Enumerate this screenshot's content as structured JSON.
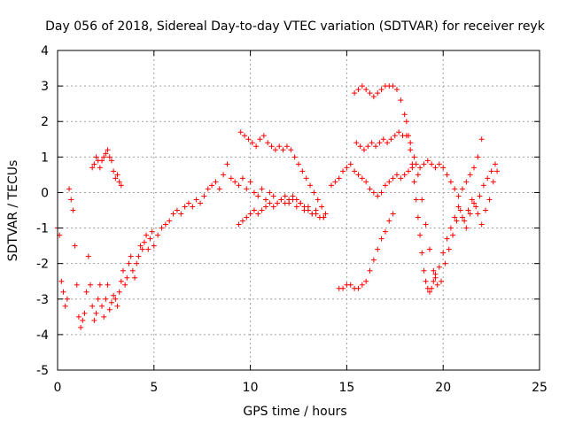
{
  "chart_data": {
    "type": "scatter",
    "title": "Day 056 of 2018, Sidereal Day-to-day VTEC variation (SDTVAR) for receiver reyk",
    "xlabel": "GPS time / hours",
    "ylabel": "SDTVAR / TECUs",
    "xlim": [
      0,
      25
    ],
    "ylim": [
      -5,
      4
    ],
    "xticks": [
      "0",
      "5",
      "10",
      "15",
      "20",
      "25"
    ],
    "yticks": [
      "-5",
      "-4",
      "-3",
      "-2",
      "-1",
      "0",
      "1",
      "2",
      "3",
      "4"
    ],
    "grid": true,
    "legend": "none",
    "marker": "+",
    "color": "#ff0000",
    "series": [
      {
        "x": [
          0.0,
          0.1,
          0.2,
          0.3,
          0.4,
          0.5,
          0.6,
          0.7,
          0.8,
          0.9,
          1.0,
          1.1,
          1.2,
          1.3,
          1.4,
          1.5,
          1.6,
          1.7,
          1.8,
          1.9,
          2.0,
          2.1,
          2.2,
          2.3,
          2.4,
          2.5,
          2.6,
          2.7,
          2.8,
          2.9,
          3.0,
          3.1,
          3.2,
          3.3,
          3.4,
          3.5,
          3.6,
          3.7,
          3.8,
          3.9,
          4.0,
          4.1,
          4.2,
          4.3,
          4.4,
          4.5,
          4.6,
          4.7,
          4.8,
          4.9,
          5.0,
          5.2,
          5.4,
          5.6,
          5.8,
          6.0,
          6.2,
          6.4,
          6.6,
          6.8,
          7.0,
          7.2,
          7.4,
          7.6,
          7.8,
          8.0,
          8.2,
          8.4,
          8.6,
          8.8,
          9.0,
          9.2,
          9.4,
          9.6,
          9.8,
          10.0,
          10.2,
          10.4,
          10.6,
          10.8,
          11.0,
          11.2,
          11.4,
          11.6,
          11.8,
          12.0,
          12.2,
          12.4,
          12.6,
          12.8,
          13.0,
          13.2,
          13.4,
          13.6,
          13.8
        ],
        "y": [
          -1.0,
          -1.2,
          -2.5,
          -2.8,
          -3.2,
          -3.0,
          0.1,
          -0.2,
          -0.5,
          -1.5,
          -2.6,
          -3.5,
          -3.8,
          -3.6,
          -3.4,
          -2.8,
          -1.8,
          -2.6,
          -3.2,
          -3.6,
          -3.4,
          -3.0,
          -2.6,
          -3.2,
          -3.5,
          -3.0,
          -2.6,
          -3.3,
          -3.1,
          -2.9,
          -3.0,
          -3.2,
          -2.8,
          -2.5,
          -2.2,
          -2.6,
          -2.4,
          -2.0,
          -1.8,
          -2.2,
          -2.4,
          -2.0,
          -1.8,
          -1.5,
          -1.6,
          -1.4,
          -1.2,
          -1.6,
          -1.3,
          -1.1,
          -1.5,
          -1.2,
          -1.0,
          -0.9,
          -0.8,
          -0.6,
          -0.5,
          -0.6,
          -0.4,
          -0.3,
          -0.4,
          -0.2,
          -0.3,
          -0.1,
          0.1,
          0.2,
          0.3,
          0.1,
          0.5,
          0.8,
          0.4,
          0.3,
          0.2,
          0.4,
          0.1,
          0.3,
          0.0,
          -0.1,
          0.1,
          -0.2,
          0.0,
          -0.1,
          -0.3,
          -0.2,
          -0.1,
          -0.3,
          -0.2,
          -0.4,
          -0.3,
          -0.5,
          -0.4,
          -0.6,
          -0.5,
          -0.7,
          -0.7
        ]
      },
      {
        "x": [
          1.8,
          1.9,
          2.0,
          2.1,
          2.2,
          2.3,
          2.4,
          2.5,
          2.6,
          2.7,
          2.8,
          2.9,
          3.0,
          3.1,
          3.2,
          3.3
        ],
        "y": [
          0.7,
          0.8,
          1.0,
          0.9,
          0.7,
          0.9,
          1.0,
          1.1,
          1.2,
          1.0,
          0.9,
          0.6,
          0.4,
          0.5,
          0.3,
          0.2
        ]
      },
      {
        "x": [
          9.4,
          9.6,
          9.8,
          10.0,
          10.2,
          10.4,
          10.6,
          10.8,
          11.0,
          11.2,
          11.4,
          11.6,
          11.8,
          12.0,
          12.2,
          12.4,
          12.6,
          12.8,
          13.0,
          13.2,
          13.4,
          13.6,
          13.8
        ],
        "y": [
          -0.9,
          -0.8,
          -0.7,
          -0.6,
          -0.5,
          -0.6,
          -0.5,
          -0.4,
          -0.3,
          -0.4,
          -0.3,
          -0.2,
          -0.3,
          -0.2,
          -0.1,
          -0.2,
          -0.3,
          -0.4,
          -0.5,
          -0.6,
          -0.6,
          -0.7,
          -0.7
        ]
      },
      {
        "x": [
          9.5,
          9.7,
          9.9,
          10.1,
          10.3,
          10.5,
          10.7,
          10.9,
          11.1,
          11.3,
          11.5,
          11.7,
          11.9,
          12.1,
          12.3,
          12.5,
          12.7,
          12.9,
          13.1,
          13.3,
          13.5,
          13.7,
          13.9
        ],
        "y": [
          1.7,
          1.6,
          1.5,
          1.4,
          1.3,
          1.5,
          1.6,
          1.4,
          1.3,
          1.2,
          1.3,
          1.2,
          1.3,
          1.2,
          1.0,
          0.8,
          0.6,
          0.4,
          0.2,
          0.0,
          -0.2,
          -0.4,
          -0.6
        ]
      },
      {
        "x": [
          14.2,
          14.4,
          14.6,
          14.8,
          15.0,
          15.2,
          15.4,
          15.6,
          15.8,
          16.0,
          16.2,
          16.4,
          16.6,
          16.8,
          17.0,
          17.2,
          17.4,
          17.6,
          17.8,
          18.0,
          18.2,
          18.4,
          18.6,
          18.8,
          19.0,
          19.2,
          19.4,
          19.6,
          19.8,
          20.0,
          20.2,
          20.4,
          20.6,
          20.8,
          21.0,
          21.2,
          21.4,
          21.6,
          21.8,
          22.0
        ],
        "y": [
          0.2,
          0.3,
          0.4,
          0.6,
          0.7,
          0.8,
          0.6,
          0.5,
          0.4,
          0.3,
          0.1,
          0.0,
          -0.1,
          0.0,
          0.2,
          0.3,
          0.4,
          0.5,
          0.4,
          0.5,
          0.6,
          0.7,
          0.8,
          0.7,
          0.8,
          0.9,
          0.8,
          0.7,
          0.8,
          0.7,
          0.5,
          0.3,
          0.1,
          -0.1,
          0.1,
          0.3,
          0.5,
          0.7,
          1.0,
          1.5
        ]
      },
      {
        "x": [
          15.4,
          15.6,
          15.8,
          16.0,
          16.2,
          16.4,
          16.6,
          16.8,
          17.0,
          17.2,
          17.4,
          17.6,
          17.8,
          18.0,
          18.1,
          18.2,
          18.3,
          18.4,
          18.5,
          18.6,
          18.7,
          18.8,
          18.9,
          19.0,
          19.1,
          19.2,
          19.3,
          19.4,
          19.5,
          19.6
        ],
        "y": [
          2.8,
          2.9,
          3.0,
          2.9,
          2.8,
          2.7,
          2.8,
          2.9,
          3.0,
          3.0,
          3.0,
          2.9,
          2.6,
          2.2,
          2.0,
          1.6,
          1.2,
          0.8,
          0.3,
          -0.2,
          -0.7,
          -1.2,
          -1.7,
          -2.2,
          -2.5,
          -2.7,
          -2.8,
          -2.7,
          -2.5,
          -2.3
        ]
      },
      {
        "x": [
          15.5,
          15.7,
          15.9,
          16.1,
          16.3,
          16.5,
          16.7,
          16.9,
          17.1,
          17.3,
          17.5,
          17.7,
          17.9,
          18.1,
          18.3,
          18.5,
          18.7,
          18.9,
          19.1,
          19.3,
          19.5,
          19.7,
          19.9,
          20.1,
          20.3,
          20.5,
          20.7,
          20.9,
          21.1,
          21.3,
          21.5,
          21.7,
          21.9,
          22.1,
          22.3,
          22.5,
          22.7
        ],
        "y": [
          1.4,
          1.3,
          1.2,
          1.3,
          1.4,
          1.3,
          1.4,
          1.5,
          1.4,
          1.5,
          1.6,
          1.7,
          1.6,
          1.6,
          1.4,
          1.0,
          0.5,
          -0.2,
          -0.9,
          -1.6,
          -2.2,
          -2.6,
          -2.5,
          -2.0,
          -1.6,
          -1.2,
          -0.8,
          -0.5,
          -0.8,
          -0.5,
          -0.2,
          -0.4,
          -0.1,
          0.2,
          0.4,
          0.6,
          0.8
        ]
      },
      {
        "x": [
          14.6,
          14.8,
          15.0,
          15.2,
          15.4,
          15.6,
          15.8,
          16.0,
          16.2,
          16.4,
          16.6,
          16.8,
          17.0,
          17.2,
          17.4
        ],
        "y": [
          -2.7,
          -2.7,
          -2.6,
          -2.6,
          -2.7,
          -2.7,
          -2.6,
          -2.5,
          -2.2,
          -1.9,
          -1.6,
          -1.3,
          -1.1,
          -0.8,
          -0.6
        ]
      },
      {
        "x": [
          19.6,
          19.8,
          20.0,
          20.2,
          20.4,
          20.6,
          20.8,
          21.0,
          21.2,
          21.4,
          21.6,
          21.8,
          22.0,
          22.2,
          22.4,
          22.6,
          22.8
        ],
        "y": [
          -2.4,
          -2.1,
          -1.7,
          -1.3,
          -1.0,
          -0.7,
          -0.4,
          -0.7,
          -1.0,
          -0.6,
          -0.3,
          -0.6,
          -0.9,
          -0.5,
          -0.2,
          0.3,
          0.6
        ]
      }
    ]
  }
}
